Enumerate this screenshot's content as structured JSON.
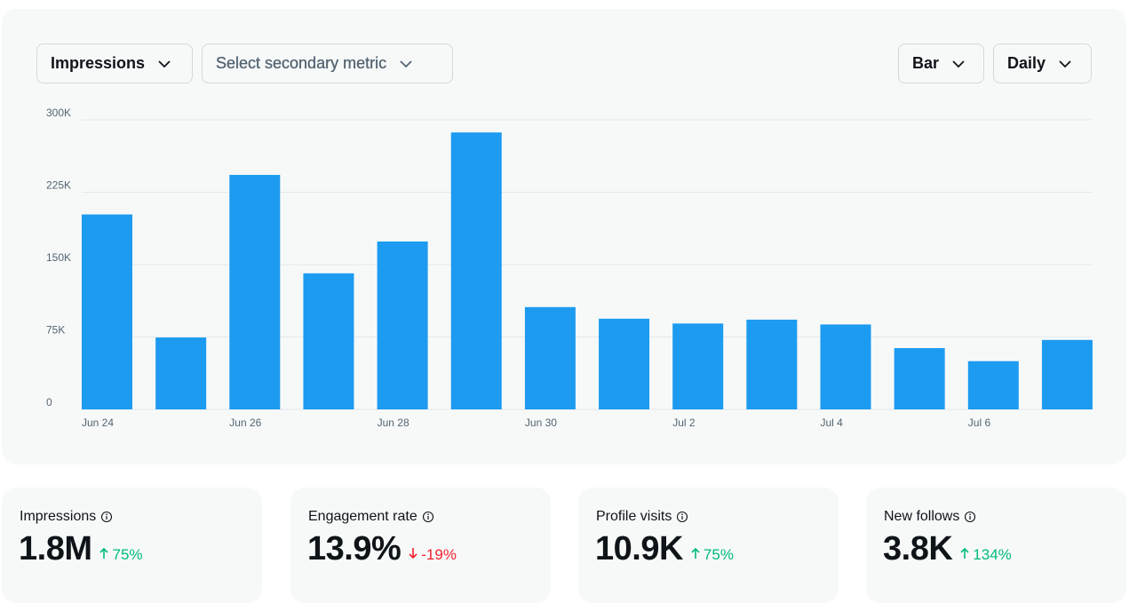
{
  "controls": {
    "primary_metric": "Impressions",
    "secondary_metric": "Select secondary metric",
    "chart_type": "Bar",
    "interval": "Daily"
  },
  "chart_data": {
    "type": "bar",
    "color": "#1d9bf0",
    "grid": true,
    "categories": [
      "Jun 24",
      null,
      "Jun 26",
      null,
      "Jun 28",
      null,
      "Jun 30",
      null,
      "Jul 2",
      null,
      "Jul 4",
      null,
      "Jul 6",
      null
    ],
    "values": [
      202000,
      74500,
      243000,
      141000,
      174000,
      287000,
      106000,
      94000,
      89000,
      93000,
      88000,
      63500,
      50000,
      72000
    ],
    "ylim": [
      0,
      300000
    ],
    "yticks": [
      0,
      {
        "value": 75000,
        "label": "75K"
      },
      {
        "value": 150000,
        "label": "150K"
      },
      {
        "value": 225000,
        "label": "225K"
      },
      {
        "value": 300000,
        "label": "300K"
      }
    ]
  },
  "stats": [
    {
      "label": "Impressions",
      "value": "1.8M",
      "change": "75%",
      "trend": "up",
      "color": "#00ba7c"
    },
    {
      "label": "Engagement rate",
      "value": "13.9%",
      "change": "-19%",
      "trend": "down",
      "color": "#f4212e"
    },
    {
      "label": "Profile visits",
      "value": "10.9K",
      "change": "75%",
      "trend": "up",
      "color": "#00ba7c"
    },
    {
      "label": "New follows",
      "value": "3.8K",
      "change": "134%",
      "trend": "up",
      "color": "#00ba7c"
    }
  ]
}
